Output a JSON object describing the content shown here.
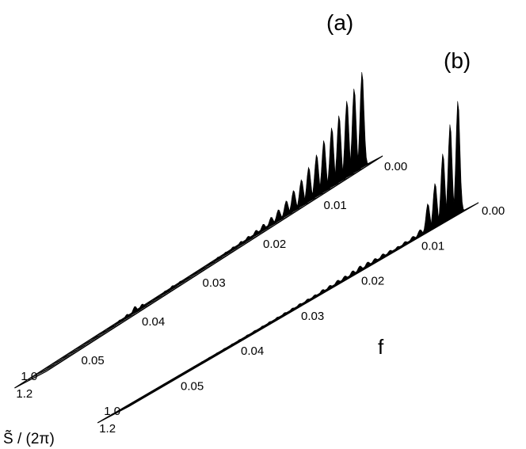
{
  "chart_data": [
    {
      "type": "area",
      "panel_label": "(a)",
      "x_axis_ticks": [
        "0.00",
        "0.01",
        "0.02",
        "0.03",
        "0.04",
        "0.05"
      ],
      "y_axis_ticks": [
        "1.0",
        "1.2"
      ],
      "ylabel": "S̃ / (2π)",
      "series": [
        {
          "f": 0.0012,
          "peak": 1.0
        },
        {
          "f": 0.0025,
          "peak": 0.88
        },
        {
          "f": 0.0037,
          "peak": 0.8
        },
        {
          "f": 0.005,
          "peak": 0.7
        },
        {
          "f": 0.0062,
          "peak": 0.62
        },
        {
          "f": 0.0075,
          "peak": 0.54
        },
        {
          "f": 0.0087,
          "peak": 0.44
        },
        {
          "f": 0.01,
          "peak": 0.36
        },
        {
          "f": 0.0112,
          "peak": 0.28
        },
        {
          "f": 0.0125,
          "peak": 0.22
        },
        {
          "f": 0.0137,
          "peak": 0.16
        },
        {
          "f": 0.015,
          "peak": 0.12
        },
        {
          "f": 0.0162,
          "peak": 0.09
        },
        {
          "f": 0.0175,
          "peak": 0.07
        },
        {
          "f": 0.0187,
          "peak": 0.055
        },
        {
          "f": 0.02,
          "peak": 0.045
        },
        {
          "f": 0.0212,
          "peak": 0.04
        },
        {
          "f": 0.0225,
          "peak": 0.035
        },
        {
          "f": 0.0237,
          "peak": 0.03
        },
        {
          "f": 0.025,
          "peak": 0.03
        },
        {
          "f": 0.0262,
          "peak": 0.025
        },
        {
          "f": 0.0275,
          "peak": 0.02
        },
        {
          "f": 0.0287,
          "peak": 0.02
        },
        {
          "f": 0.03,
          "peak": 0.018
        },
        {
          "f": 0.0312,
          "peak": 0.03
        },
        {
          "f": 0.0325,
          "peak": 0.035
        },
        {
          "f": 0.0337,
          "peak": 0.03
        },
        {
          "f": 0.035,
          "peak": 0.02
        },
        {
          "f": 0.0362,
          "peak": 0.02
        },
        {
          "f": 0.0375,
          "peak": 0.045
        },
        {
          "f": 0.0387,
          "peak": 0.07
        },
        {
          "f": 0.04,
          "peak": 0.04
        },
        {
          "f": 0.0412,
          "peak": 0.03
        },
        {
          "f": 0.0425,
          "peak": 0.02
        },
        {
          "f": 0.0437,
          "peak": 0.015
        },
        {
          "f": 0.045,
          "peak": 0.012
        },
        {
          "f": 0.0462,
          "peak": 0.01
        },
        {
          "f": 0.0475,
          "peak": 0.01
        },
        {
          "f": 0.0487,
          "peak": 0.01
        },
        {
          "f": 0.05,
          "peak": 0.01
        },
        {
          "f": 0.0512,
          "peak": 0.008
        },
        {
          "f": 0.0525,
          "peak": 0.008
        },
        {
          "f": 0.0537,
          "peak": 0.008
        }
      ]
    },
    {
      "type": "area",
      "panel_label": "(b)",
      "x_axis_ticks": [
        "0.00",
        "0.01",
        "0.02",
        "0.03",
        "0.04",
        "0.05"
      ],
      "y_axis_ticks": [
        "1.0",
        "1.2"
      ],
      "xlabel": "f",
      "series": [
        {
          "f": 0.0012,
          "peak": 0.9
        },
        {
          "f": 0.0025,
          "peak": 0.75
        },
        {
          "f": 0.0037,
          "peak": 0.55
        },
        {
          "f": 0.005,
          "peak": 0.35
        },
        {
          "f": 0.0062,
          "peak": 0.22
        },
        {
          "f": 0.0075,
          "peak": 0.05
        },
        {
          "f": 0.0087,
          "peak": 0.03
        },
        {
          "f": 0.01,
          "peak": 0.025
        },
        {
          "f": 0.0112,
          "peak": 0.02
        },
        {
          "f": 0.0125,
          "peak": 0.025
        },
        {
          "f": 0.0137,
          "peak": 0.03
        },
        {
          "f": 0.015,
          "peak": 0.03
        },
        {
          "f": 0.0162,
          "peak": 0.035
        },
        {
          "f": 0.0175,
          "peak": 0.04
        },
        {
          "f": 0.0187,
          "peak": 0.035
        },
        {
          "f": 0.02,
          "peak": 0.03
        },
        {
          "f": 0.0212,
          "peak": 0.03
        },
        {
          "f": 0.0225,
          "peak": 0.025
        },
        {
          "f": 0.0237,
          "peak": 0.025
        },
        {
          "f": 0.025,
          "peak": 0.02
        },
        {
          "f": 0.0262,
          "peak": 0.02
        },
        {
          "f": 0.0275,
          "peak": 0.02
        },
        {
          "f": 0.0287,
          "peak": 0.018
        },
        {
          "f": 0.03,
          "peak": 0.018
        },
        {
          "f": 0.0312,
          "peak": 0.016
        },
        {
          "f": 0.0325,
          "peak": 0.016
        },
        {
          "f": 0.0337,
          "peak": 0.015
        },
        {
          "f": 0.035,
          "peak": 0.015
        },
        {
          "f": 0.0362,
          "peak": 0.014
        },
        {
          "f": 0.0375,
          "peak": 0.014
        },
        {
          "f": 0.0387,
          "peak": 0.013
        },
        {
          "f": 0.04,
          "peak": 0.013
        },
        {
          "f": 0.0412,
          "peak": 0.012
        },
        {
          "f": 0.0425,
          "peak": 0.012
        },
        {
          "f": 0.0437,
          "peak": 0.011
        },
        {
          "f": 0.045,
          "peak": 0.011
        },
        {
          "f": 0.0462,
          "peak": 0.01
        },
        {
          "f": 0.0475,
          "peak": 0.01
        },
        {
          "f": 0.0487,
          "peak": 0.01
        },
        {
          "f": 0.05,
          "peak": 0.01
        },
        {
          "f": 0.0512,
          "peak": 0.009
        },
        {
          "f": 0.0525,
          "peak": 0.009
        },
        {
          "f": 0.0537,
          "peak": 0.009
        },
        {
          "f": 0.055,
          "peak": 0.008
        },
        {
          "f": 0.0562,
          "peak": 0.008
        },
        {
          "f": 0.0575,
          "peak": 0.008
        }
      ]
    }
  ]
}
